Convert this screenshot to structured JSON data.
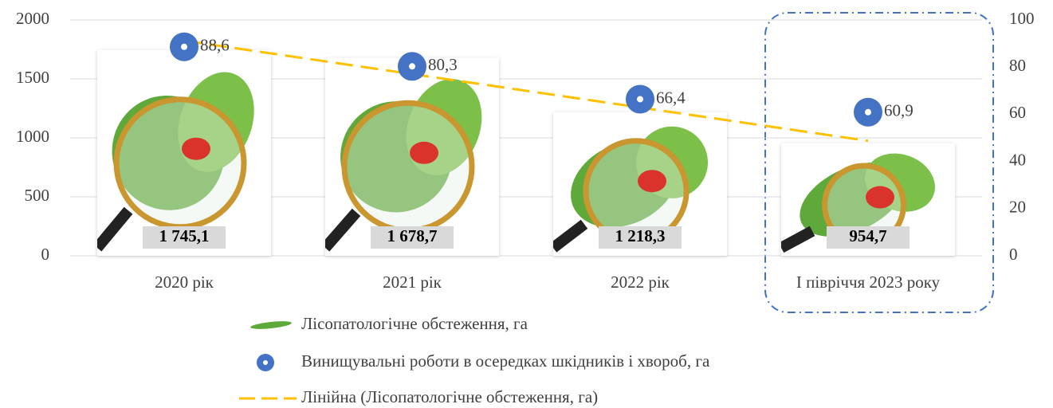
{
  "chart_data": {
    "type": "bar",
    "categories": [
      "2020 рік",
      "2021 рік",
      "2022 рік",
      "І півріччя 2023 року"
    ],
    "series": [
      {
        "name": "Лісопатологічне обстеження, га",
        "type": "bar",
        "color": "#5fa83a",
        "values": [
          1745.1,
          1678.7,
          1218.3,
          954.7
        ],
        "value_labels": [
          "1 745,1",
          "1 678,7",
          "1 218,3",
          "954,7"
        ]
      },
      {
        "name": "Винищувальні роботи в осередках шкідників і хвороб, га",
        "type": "scatter",
        "axis": "y2",
        "color": "#4472c4",
        "values": [
          88.6,
          80.3,
          66.4,
          60.9
        ],
        "value_labels": [
          "88,6",
          "80,3",
          "66,4",
          "60,9"
        ]
      }
    ],
    "trendline": {
      "name": "Лінійна (Лісопатологічне обстеження, га)",
      "color": "#ffc000",
      "dashed": true
    },
    "ylim": [
      0,
      2000
    ],
    "yticks": [
      0,
      500,
      1000,
      1500,
      2000
    ],
    "y2lim": [
      0,
      100
    ],
    "y2ticks": [
      0,
      20,
      40,
      60,
      80,
      100
    ],
    "grid": true
  }
}
